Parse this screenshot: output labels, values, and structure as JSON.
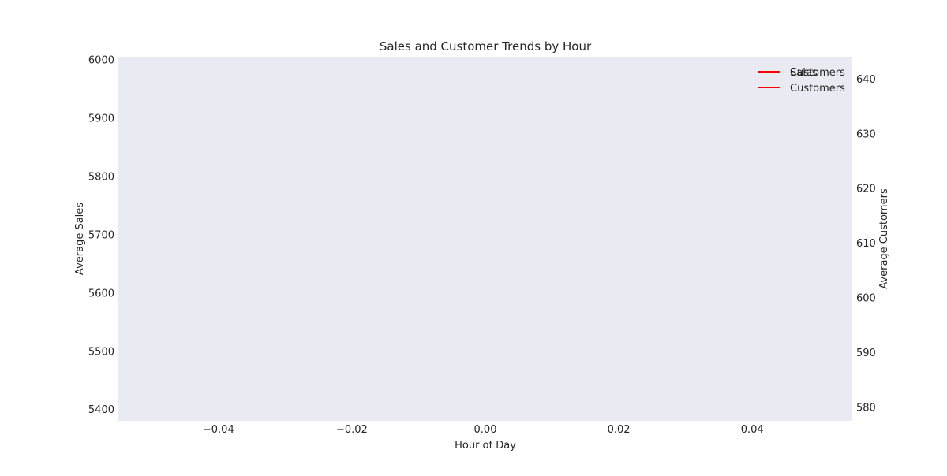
{
  "chart_data": {
    "type": "line",
    "title": "Sales and Customer Trends by Hour",
    "xlabel": "Hour of Day",
    "ylabel_left": "Average Sales",
    "ylabel_right": "Average Customers",
    "xlim": [
      -0.055,
      0.055
    ],
    "ylim_left": [
      5380,
      6005
    ],
    "ylim_right": [
      577.5,
      644
    ],
    "x_ticks": [
      -0.04,
      -0.02,
      0.0,
      0.02,
      0.04
    ],
    "x_tick_labels": [
      "−0.04",
      "−0.02",
      "0.00",
      "0.02",
      "0.04"
    ],
    "y_left_ticks": [
      5400,
      5500,
      5600,
      5700,
      5800,
      5900,
      6000
    ],
    "y_left_tick_labels": [
      "5400",
      "5500",
      "5600",
      "5700",
      "5800",
      "5900",
      "6000"
    ],
    "y_right_ticks": [
      580,
      590,
      600,
      610,
      620,
      630,
      640
    ],
    "y_right_tick_labels": [
      "580",
      "590",
      "600",
      "610",
      "620",
      "630",
      "640"
    ],
    "grid": false,
    "legend_placement": "top-right",
    "series": [
      {
        "name": "Sales",
        "axis": "left",
        "color": "#0000ff",
        "x": [],
        "y": []
      },
      {
        "name": "Customers",
        "axis": "right",
        "color": "#ff0000",
        "x": [],
        "y": []
      }
    ],
    "legends": [
      {
        "entries": [
          "Sales"
        ]
      },
      {
        "entries": [
          "Customers",
          "Customers"
        ]
      }
    ],
    "plot_background": "#eaeaf2"
  }
}
